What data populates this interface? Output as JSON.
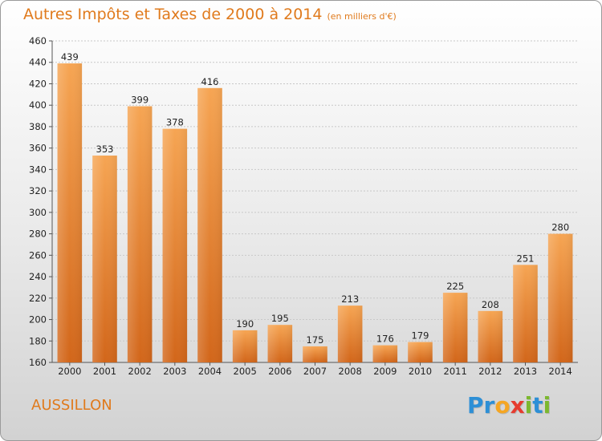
{
  "chart_data": {
    "type": "bar",
    "title": "Autres Impôts et Taxes de 2000 à 2014",
    "subtitle": "(en milliers d'€)",
    "categories": [
      "2000",
      "2001",
      "2002",
      "2003",
      "2004",
      "2005",
      "2006",
      "2007",
      "2008",
      "2009",
      "2010",
      "2011",
      "2012",
      "2013",
      "2014"
    ],
    "values": [
      439,
      353,
      399,
      378,
      416,
      190,
      195,
      175,
      213,
      176,
      179,
      225,
      208,
      251,
      280
    ],
    "ylim": [
      160,
      460
    ],
    "yticks": [
      160,
      180,
      200,
      220,
      240,
      260,
      280,
      300,
      320,
      340,
      360,
      380,
      400,
      420,
      440,
      460
    ],
    "grid": true,
    "bar_colors": {
      "top": "#f6a553",
      "bottom": "#d2661a"
    }
  },
  "footer": {
    "commune": "AUSSILLON",
    "logo_letters": [
      {
        "ch": "P",
        "color": "#2d8fd6"
      },
      {
        "ch": "r",
        "color": "#2d8fd6"
      },
      {
        "ch": "o",
        "color": "#f5a623"
      },
      {
        "ch": "x",
        "color": "#e63b2e"
      },
      {
        "ch": "i",
        "color": "#7cb82f"
      },
      {
        "ch": "t",
        "color": "#2d8fd6"
      },
      {
        "ch": "i",
        "color": "#7cb82f"
      }
    ]
  }
}
